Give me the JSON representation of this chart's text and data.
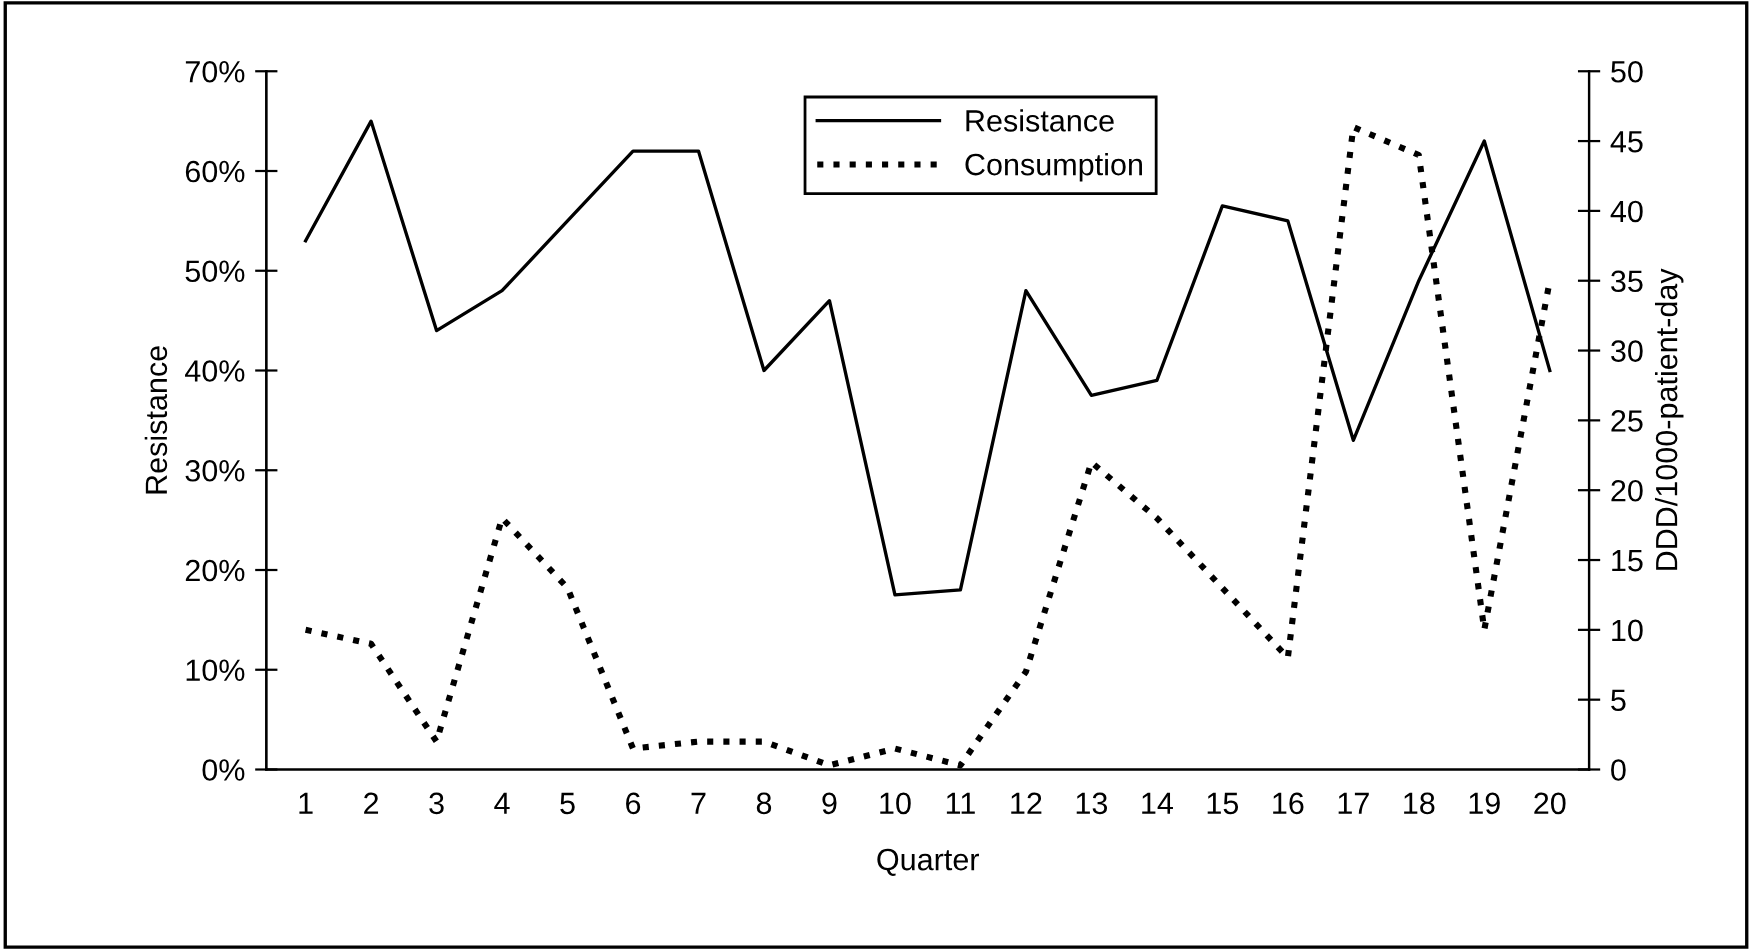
{
  "chart_data": {
    "type": "line",
    "xlabel": "Quarter",
    "ylabel": "Resistance",
    "y2label": "DDD/1000-patient-day",
    "categories": [
      "1",
      "2",
      "3",
      "4",
      "5",
      "6",
      "7",
      "8",
      "9",
      "10",
      "11",
      "12",
      "13",
      "14",
      "15",
      "16",
      "17",
      "18",
      "19",
      "20"
    ],
    "series": [
      {
        "name": "Resistance",
        "color": "#000000",
        "line_style": "solid",
        "values": [
          53,
          65,
          44,
          48,
          55,
          62,
          62,
          40,
          47,
          17.5,
          18,
          48,
          37.5,
          39,
          56.5,
          55,
          33,
          49,
          63,
          40
        ]
      },
      {
        "name": "Consumption",
        "color": "#000000",
        "line_style": "dotted",
        "axis": "y2",
        "values": [
          10,
          9,
          2,
          18,
          13,
          1.5,
          2,
          2,
          0.3,
          1.5,
          0.3,
          7,
          22,
          18,
          13,
          8,
          46,
          44,
          10,
          35
        ]
      }
    ],
    "ylim": [
      0,
      70
    ],
    "yticks": [
      {
        "value": 0,
        "label": "0%"
      },
      {
        "value": 10,
        "label": "10%"
      },
      {
        "value": 20,
        "label": "20%"
      },
      {
        "value": 30,
        "label": "30%"
      },
      {
        "value": 40,
        "label": "40%"
      },
      {
        "value": 50,
        "label": "50%"
      },
      {
        "value": 60,
        "label": "60%"
      },
      {
        "value": 70,
        "label": "70%"
      }
    ],
    "y2lim": [
      0,
      50
    ],
    "y2ticks": [
      0,
      5,
      10,
      15,
      20,
      25,
      30,
      35,
      40,
      45,
      50
    ],
    "grid": false,
    "legend": "top",
    "marker": "none"
  }
}
